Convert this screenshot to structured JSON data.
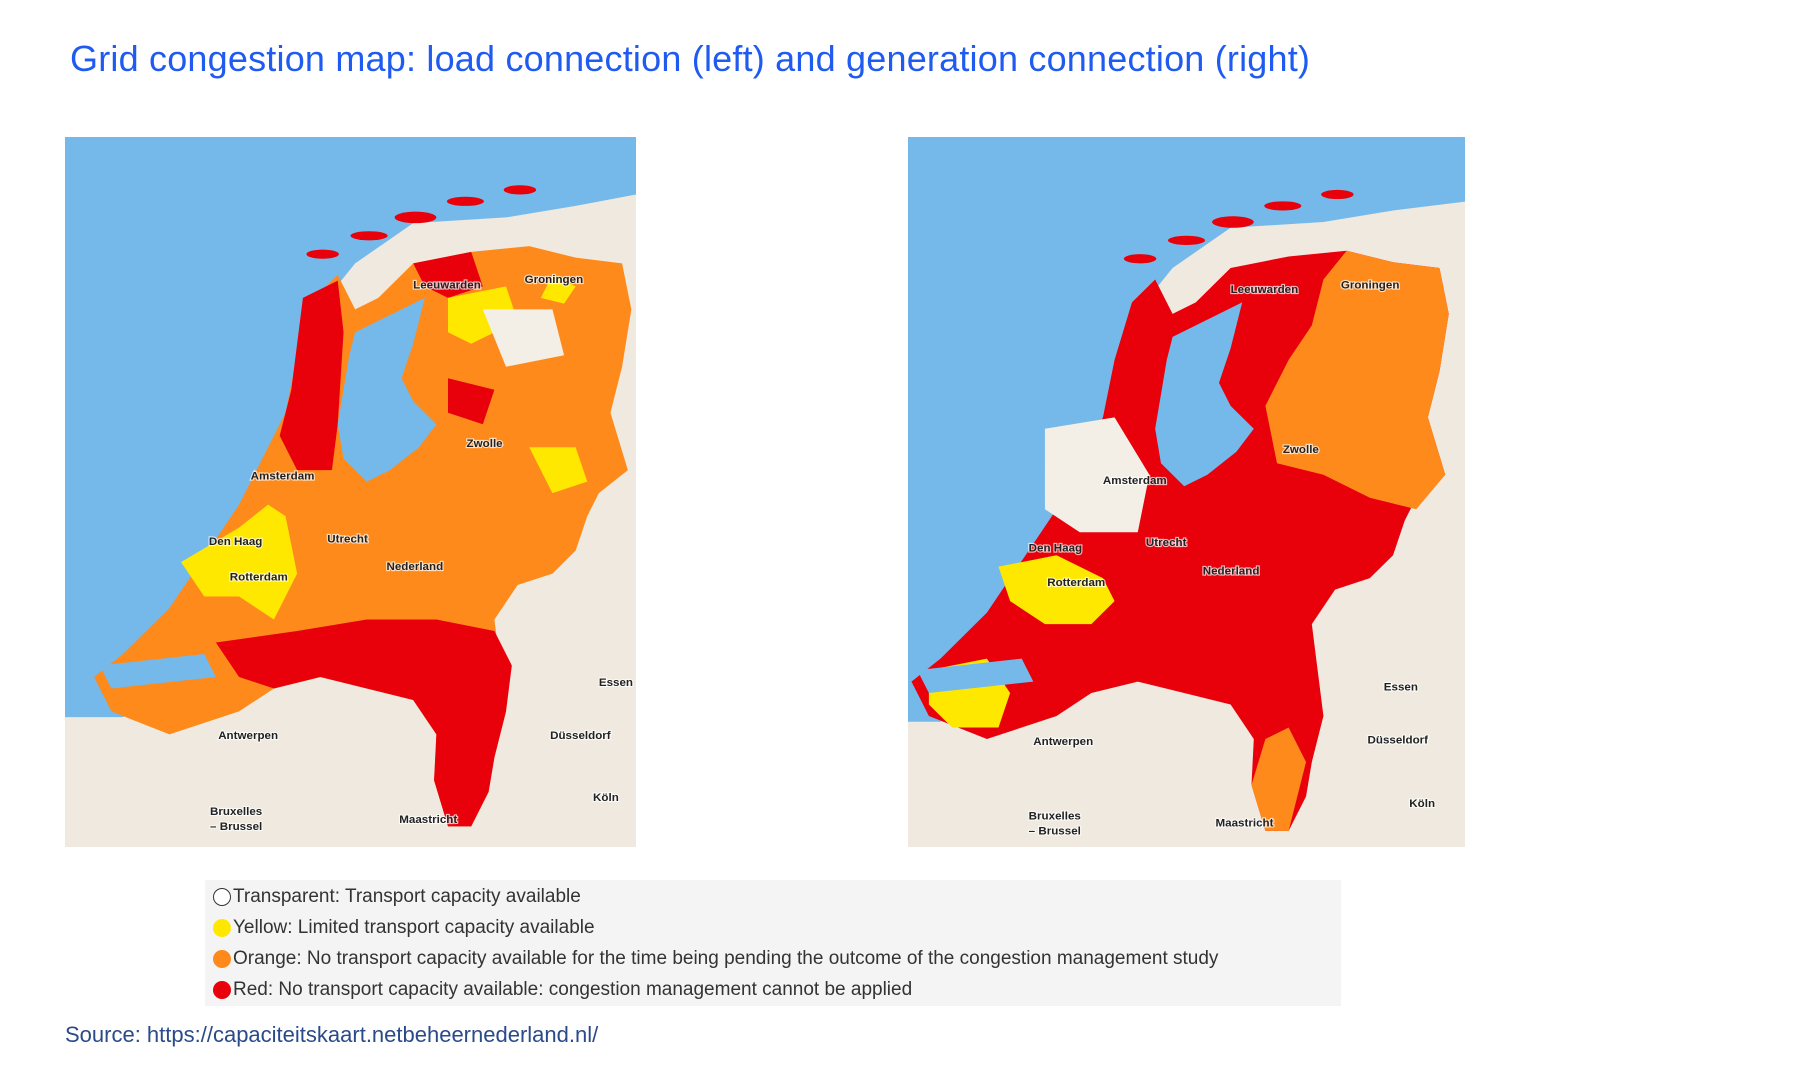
{
  "title": "Grid congestion map: load connection (left) and generation connection (right)",
  "maps": [
    {
      "labels": [
        "Leeuwarden",
        "Groningen",
        "Amsterdam",
        "Zwolle",
        "Den Haag",
        "Utrecht",
        "Rotterdam",
        "Nederland",
        "Essen",
        "Antwerpen",
        "Düsseldorf",
        "Köln",
        "Bruxelles",
        "– Brussel",
        "Maastricht"
      ]
    },
    {
      "labels": [
        "Leeuwarden",
        "Groningen",
        "Amsterdam",
        "Zwolle",
        "Den Haag",
        "Utrecht",
        "Rotterdam",
        "Nederland",
        "Essen",
        "Antwerpen",
        "Düsseldorf",
        "Köln",
        "Bruxelles",
        "– Brussel",
        "Maastricht"
      ]
    }
  ],
  "legend": [
    {
      "label": "Transparent: Transport capacity available",
      "color": "#ffffff"
    },
    {
      "label": "Yellow: Limited transport capacity available",
      "color": "#ffe800"
    },
    {
      "label": "Orange: No transport capacity available for the time being pending the outcome of the congestion management study",
      "color": "#ff8a1c"
    },
    {
      "label": "Red: No transport capacity available: congestion management cannot be applied",
      "color": "#e8000b"
    }
  ],
  "source": "Source: https://capaciteitskaart.netbeheernederland.nl/"
}
